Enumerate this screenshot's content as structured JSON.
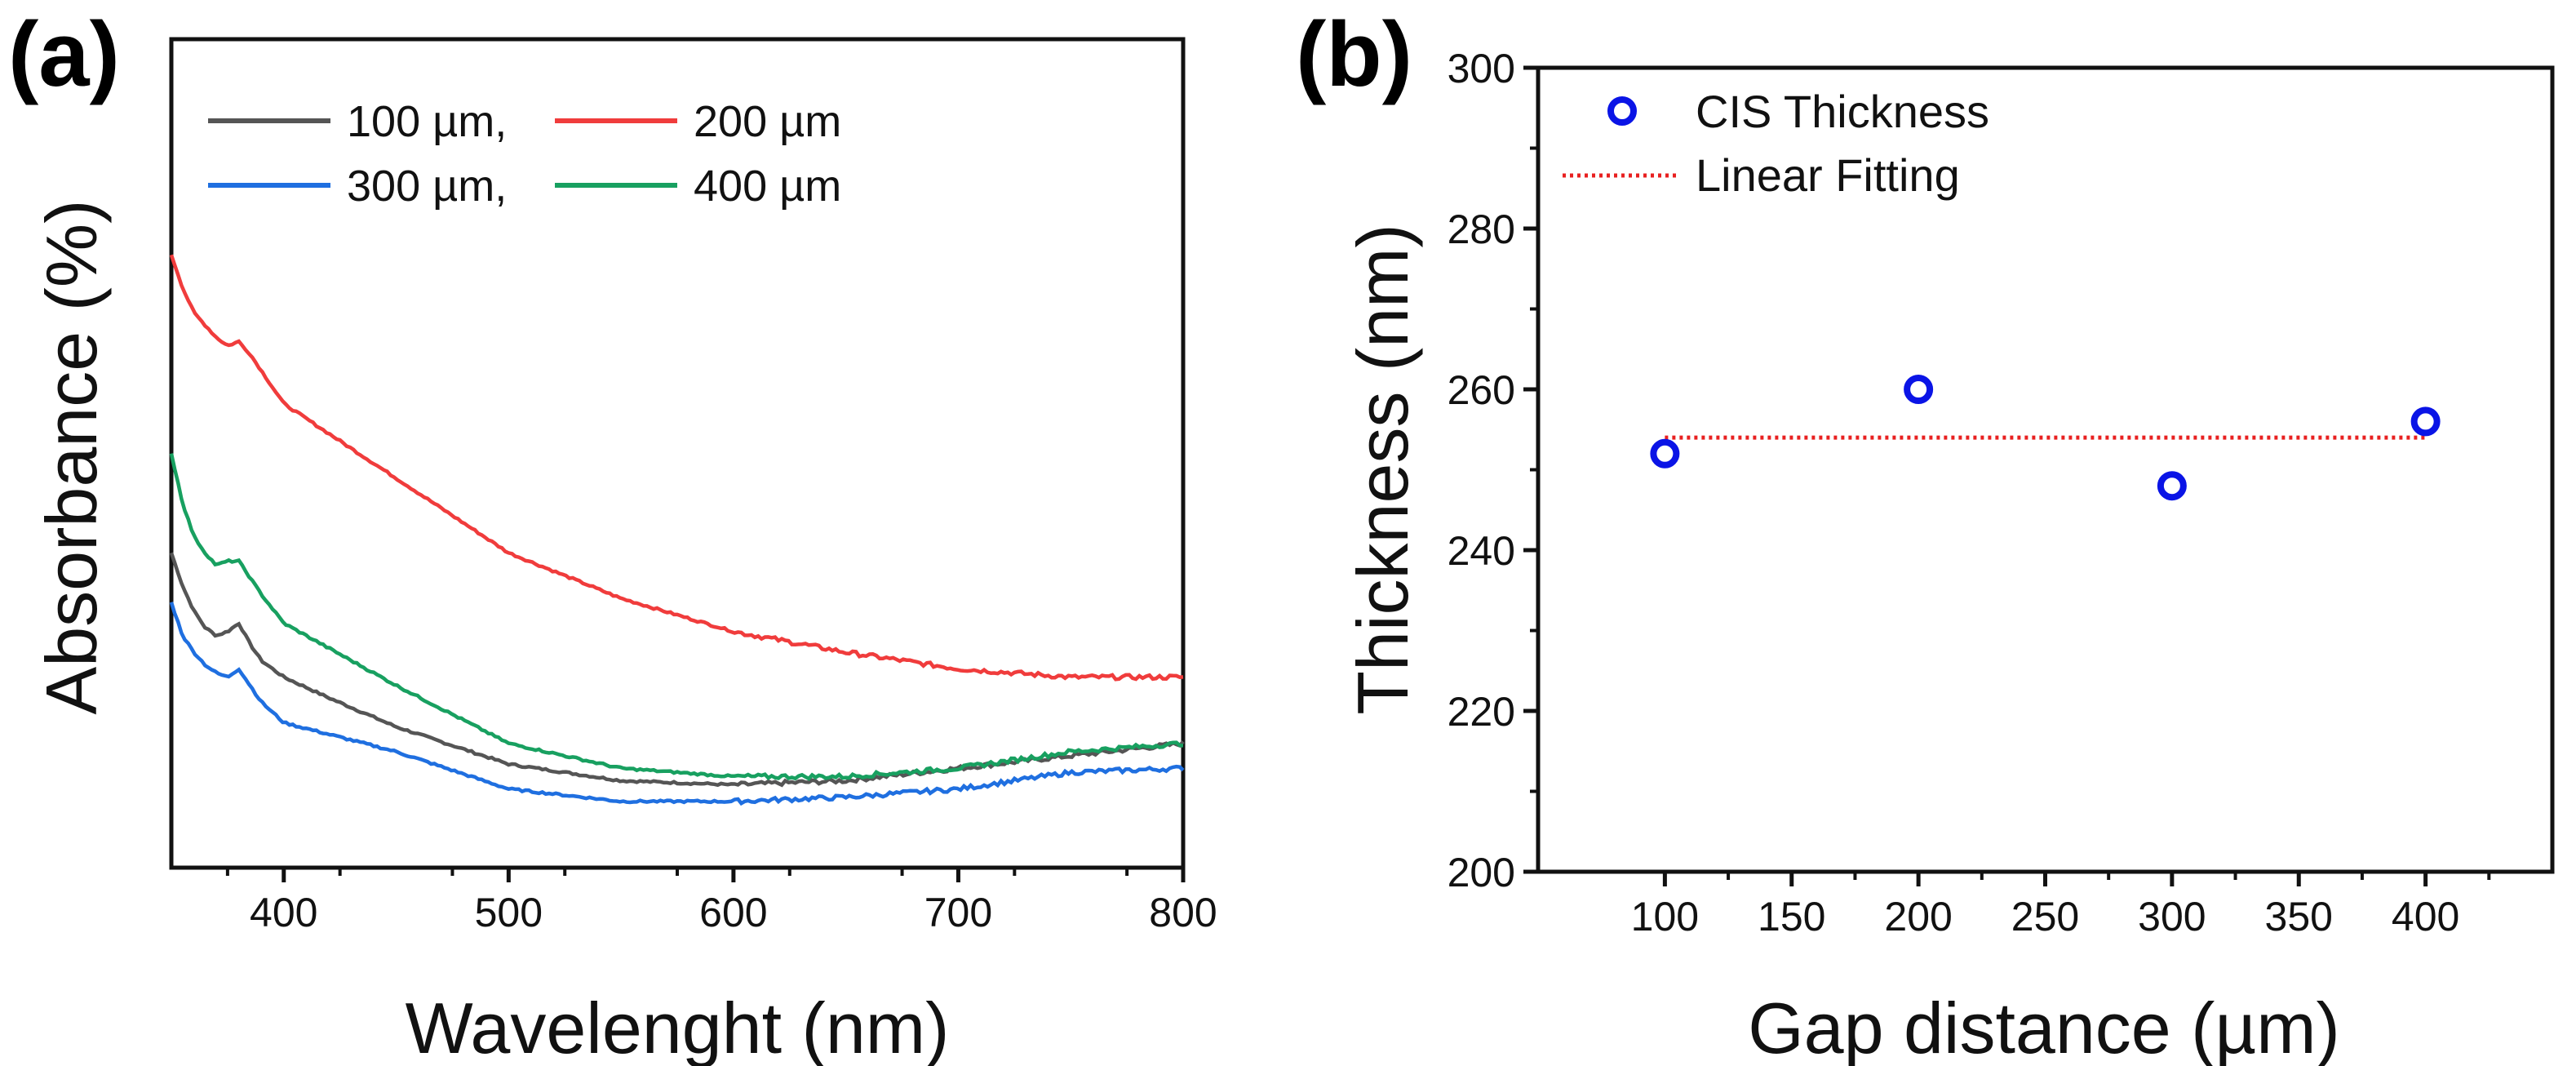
{
  "chart_data": [
    {
      "panel": "(a)",
      "type": "line",
      "xlabel": "Wavelenght (nm)",
      "ylabel": "Absorbance (%)",
      "xlim": [
        350,
        800
      ],
      "ylim": [
        0,
        100
      ],
      "y_ticks_shown": false,
      "x_ticks": [
        400,
        500,
        600,
        700,
        800
      ],
      "legend_position": "top-left",
      "legend_labels": [
        "100 µm,",
        "200 µm",
        "300 µm,",
        "400 µm"
      ],
      "series": [
        {
          "name": "100 µm",
          "color": "#555555",
          "points": [
            [
              350,
              38
            ],
            [
              355,
              34
            ],
            [
              360,
              31
            ],
            [
              365,
              29
            ],
            [
              370,
              28
            ],
            [
              375,
              28.5
            ],
            [
              380,
              29.5
            ],
            [
              385,
              27
            ],
            [
              390,
              25
            ],
            [
              400,
              23
            ],
            [
              420,
              20.5
            ],
            [
              450,
              17
            ],
            [
              500,
              12.5
            ],
            [
              550,
              10.5
            ],
            [
              600,
              10
            ],
            [
              650,
              10.5
            ],
            [
              700,
              12
            ],
            [
              750,
              13.5
            ],
            [
              800,
              15
            ]
          ]
        },
        {
          "name": "200 µm",
          "color": "#f03c3c",
          "points": [
            [
              350,
              74
            ],
            [
              355,
              70
            ],
            [
              360,
              67
            ],
            [
              370,
              64
            ],
            [
              375,
              63
            ],
            [
              380,
              63.5
            ],
            [
              385,
              62
            ],
            [
              400,
              56
            ],
            [
              450,
              47
            ],
            [
              500,
              38
            ],
            [
              550,
              32.5
            ],
            [
              600,
              28.5
            ],
            [
              650,
              26
            ],
            [
              700,
              24
            ],
            [
              750,
              23
            ],
            [
              800,
              23
            ]
          ]
        },
        {
          "name": "300 µm",
          "color": "#1f6fe0",
          "points": [
            [
              350,
              32
            ],
            [
              355,
              28
            ],
            [
              360,
              26
            ],
            [
              365,
              24.5
            ],
            [
              370,
              23.5
            ],
            [
              375,
              23
            ],
            [
              380,
              24
            ],
            [
              385,
              22
            ],
            [
              390,
              20
            ],
            [
              400,
              17.5
            ],
            [
              450,
              14
            ],
            [
              500,
              9.5
            ],
            [
              550,
              8
            ],
            [
              600,
              8
            ],
            [
              650,
              8.5
            ],
            [
              700,
              9.5
            ],
            [
              750,
              11.5
            ],
            [
              800,
              12
            ]
          ]
        },
        {
          "name": "400 µm",
          "color": "#18a060",
          "points": [
            [
              350,
              50
            ],
            [
              355,
              44
            ],
            [
              360,
              40
            ],
            [
              365,
              38
            ],
            [
              370,
              36.5
            ],
            [
              375,
              37
            ],
            [
              380,
              37
            ],
            [
              385,
              35
            ],
            [
              390,
              33
            ],
            [
              400,
              29.5
            ],
            [
              450,
              22
            ],
            [
              500,
              15
            ],
            [
              550,
              12
            ],
            [
              600,
              11
            ],
            [
              650,
              11
            ],
            [
              700,
              12
            ],
            [
              750,
              14
            ],
            [
              800,
              15
            ]
          ]
        }
      ]
    },
    {
      "panel": "(b)",
      "type": "scatter",
      "xlabel": "Gap distance (µm)",
      "ylabel": "Thickness (nm)",
      "xlim": [
        50,
        450
      ],
      "ylim": [
        200,
        300
      ],
      "x_ticks": [
        100,
        150,
        200,
        250,
        300,
        350,
        400
      ],
      "y_ticks": [
        200,
        220,
        240,
        260,
        280,
        300
      ],
      "legend_position": "top-left",
      "series": [
        {
          "name": "CIS Thickness",
          "marker": "open-circle",
          "color": "#0a14e6",
          "x": [
            100,
            200,
            300,
            400
          ],
          "y": [
            252,
            260,
            248,
            256
          ]
        },
        {
          "name": "Linear Fitting",
          "style": "dotted",
          "color": "#e82020",
          "x": [
            100,
            400
          ],
          "y": [
            254,
            254
          ]
        }
      ]
    }
  ]
}
